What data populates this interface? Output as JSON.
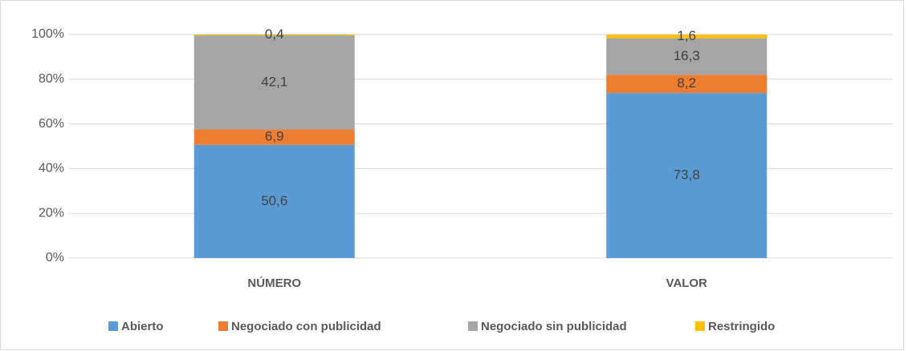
{
  "chart_data": {
    "type": "stacked_bar",
    "categories": [
      "NÚMERO",
      "VALOR"
    ],
    "series": [
      {
        "name": "Abierto",
        "color": "#5b9bd5",
        "values": [
          50.6,
          73.8
        ],
        "value_labels": [
          "50,6",
          "73,8"
        ]
      },
      {
        "name": "Negociado con publicidad",
        "color": "#ed7d31",
        "values": [
          6.9,
          8.2
        ],
        "value_labels": [
          "6,9",
          "8,2"
        ]
      },
      {
        "name": "Negociado sin publicidad",
        "color": "#a5a5a5",
        "values": [
          42.1,
          16.3
        ],
        "value_labels": [
          "42,1",
          "16,3"
        ]
      },
      {
        "name": "Restringido",
        "color": "#ffc000",
        "values": [
          0.4,
          1.6
        ],
        "value_labels": [
          "0,4",
          "1,6"
        ]
      }
    ],
    "ylim": [
      0,
      100
    ],
    "yticks": [
      {
        "value": 0,
        "label": "0%"
      },
      {
        "value": 20,
        "label": "20%"
      },
      {
        "value": 40,
        "label": "40%"
      },
      {
        "value": 60,
        "label": "60%"
      },
      {
        "value": 80,
        "label": "80%"
      },
      {
        "value": 100,
        "label": "100%"
      }
    ],
    "grid": true,
    "legend": "bottom"
  }
}
